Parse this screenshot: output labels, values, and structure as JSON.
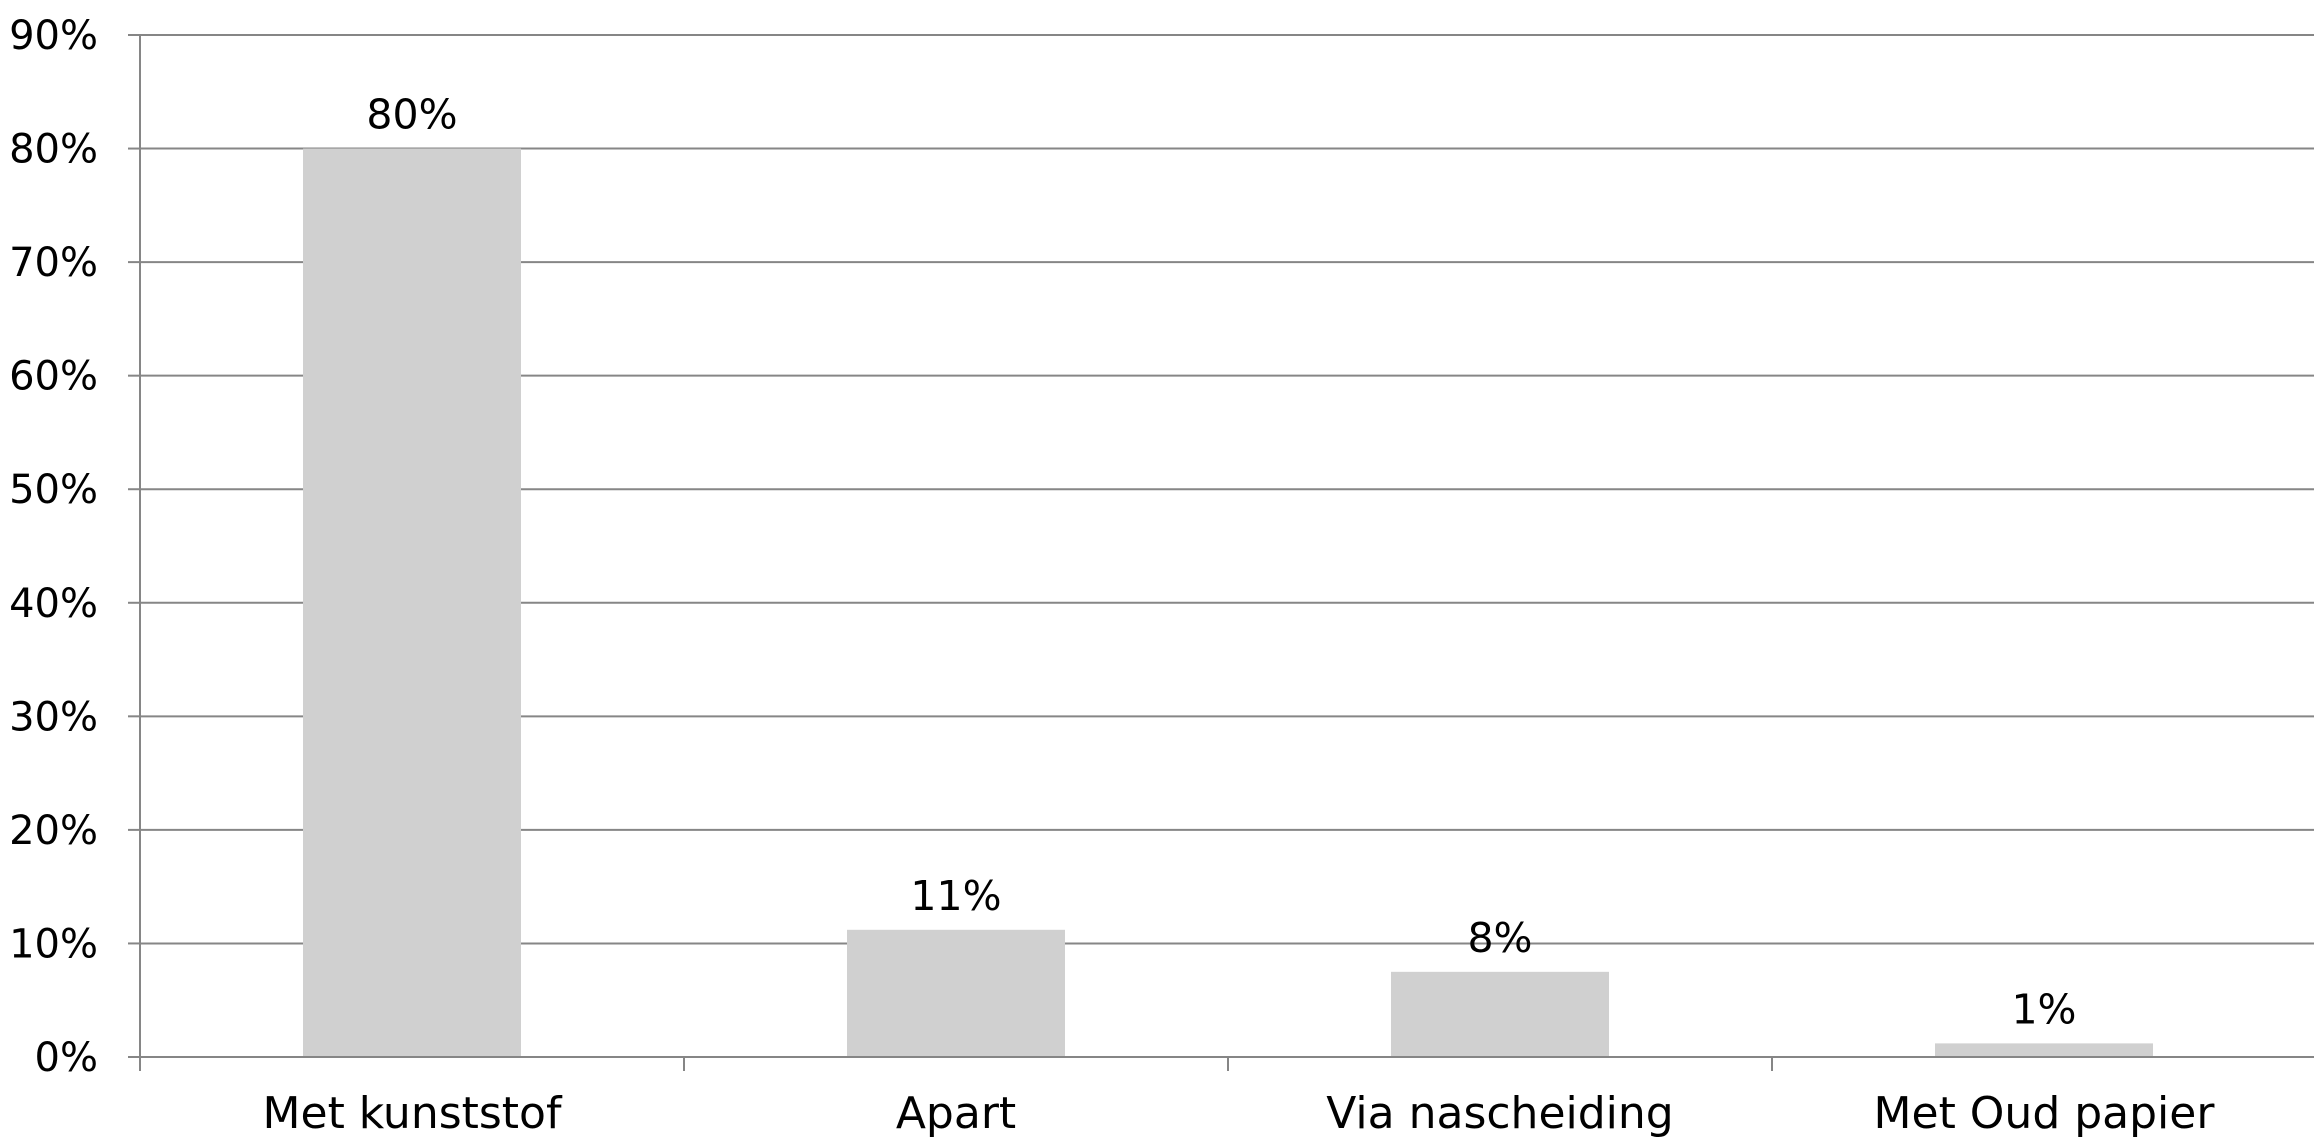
{
  "chart_data": {
    "type": "bar",
    "title": "",
    "xlabel": "",
    "ylabel": "",
    "categories": [
      "Met kunststof",
      "Apart",
      "Via nascheiding",
      "Met Oud papier"
    ],
    "values": [
      80,
      11,
      8,
      1
    ],
    "data_labels": [
      "80%",
      "11%",
      "8%",
      "1%"
    ],
    "bar_values": [
      80,
      11.2,
      7.5,
      1.2
    ],
    "ylim": [
      0,
      90
    ],
    "yticks": [
      0,
      10,
      20,
      30,
      40,
      50,
      60,
      70,
      80,
      90
    ],
    "ytick_labels": [
      "0%",
      "10%",
      "20%",
      "30%",
      "40%",
      "50%",
      "60%",
      "70%",
      "80%",
      "90%"
    ],
    "grid": true,
    "legend": "none",
    "colors": {
      "bar": "#d0d0d0",
      "grid": "#868686",
      "axis": "#868686",
      "text": "#000000"
    }
  }
}
